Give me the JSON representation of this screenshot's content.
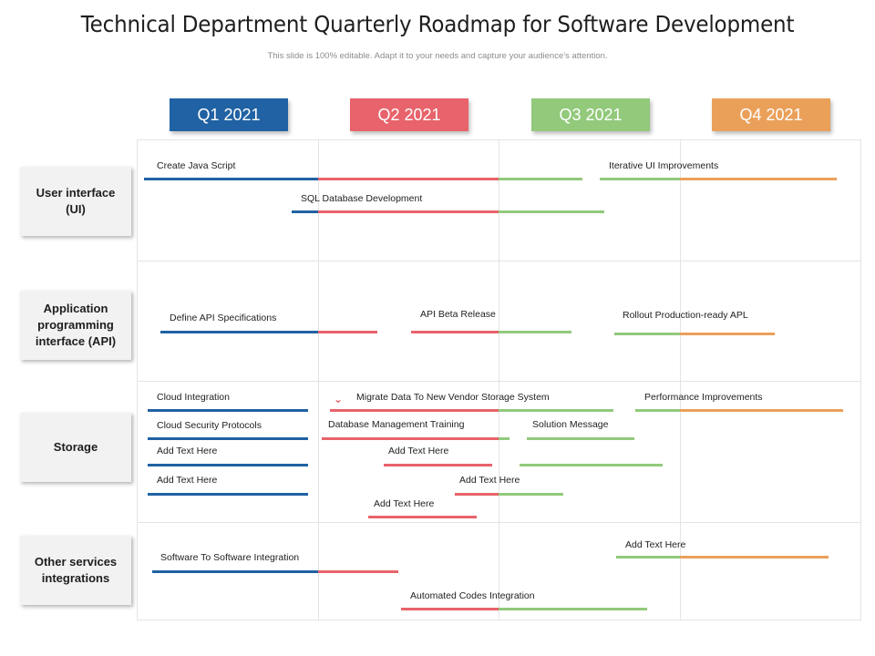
{
  "header": {
    "title": "Technical Department Quarterly Roadmap for Software Development",
    "subtitle": "This slide is 100% editable. Adapt it to your needs and capture your audience's attention."
  },
  "colors": {
    "q1": "#2062a3",
    "q2": "#e8636b",
    "q3": "#92c97b",
    "q4": "#eba05a"
  },
  "quarters": [
    {
      "label": "Q1 2021",
      "color": "#2062a3"
    },
    {
      "label": "Q2 2021",
      "color": "#e8636b"
    },
    {
      "label": "Q3 2021",
      "color": "#92c97b"
    },
    {
      "label": "Q4 2021",
      "color": "#eba05a"
    }
  ],
  "categories": [
    {
      "label": "User interface (UI)"
    },
    {
      "label": "Application programming interface (API)"
    },
    {
      "label": "Storage"
    },
    {
      "label": "Other services integrations"
    }
  ],
  "tasks": [
    {
      "label": "Create Java Script"
    },
    {
      "label": "Iterative UI Improvements"
    },
    {
      "label": "SQL Database Development"
    },
    {
      "label": "Define API Specifications"
    },
    {
      "label": "API Beta Release"
    },
    {
      "label": "Rollout Production-ready APL"
    },
    {
      "label": "Cloud Integration"
    },
    {
      "label": "Migrate Data To New Vendor Storage System"
    },
    {
      "label": "Performance Improvements"
    },
    {
      "label": "Cloud Security Protocols"
    },
    {
      "label": "Database Management Training"
    },
    {
      "label": "Solution Message"
    },
    {
      "label": "Add Text Here"
    },
    {
      "label": "Add Text Here"
    },
    {
      "label": "Add Text Here"
    },
    {
      "label": "Add Text Here"
    },
    {
      "label": "Add Text Here"
    },
    {
      "label": "Software To Software Integration"
    },
    {
      "label": "Add Text Here"
    },
    {
      "label": "Automated Codes Integration"
    }
  ]
}
